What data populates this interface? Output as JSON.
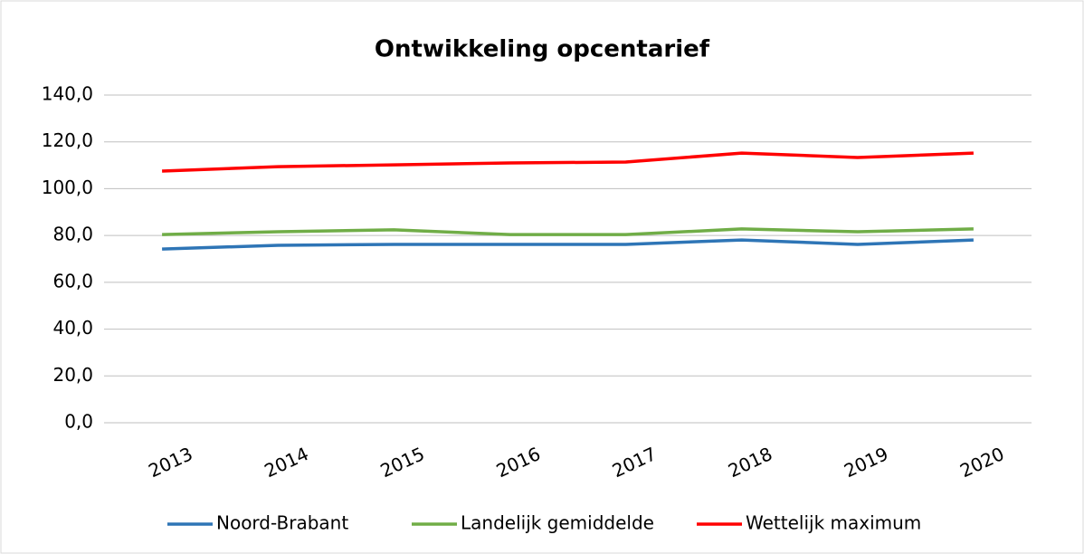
{
  "chart_data": {
    "type": "line",
    "title": "Ontwikkeling opcentarief",
    "categories": [
      "2013",
      "2014",
      "2015",
      "2016",
      "2017",
      "2018",
      "2019",
      "2020"
    ],
    "series": [
      {
        "name": "Noord-Brabant",
        "color": "#2e75b6",
        "values": [
          74.2,
          75.8,
          76.2,
          76.2,
          76.2,
          78.1,
          76.2,
          78.1
        ]
      },
      {
        "name": "Landelijk gemiddelde",
        "color": "#70ad47",
        "values": [
          80.4,
          81.6,
          82.4,
          80.4,
          80.4,
          82.8,
          81.6,
          82.8
        ]
      },
      {
        "name": "Wettelijk maximum",
        "color": "#ff0000",
        "values": [
          107.5,
          109.4,
          110.2,
          111.0,
          111.4,
          115.2,
          113.3,
          115.2
        ]
      }
    ],
    "ylim": [
      0,
      140
    ],
    "yticks": [
      {
        "value": 0,
        "label": "0,0"
      },
      {
        "value": 20,
        "label": "20,0"
      },
      {
        "value": 40,
        "label": "40,0"
      },
      {
        "value": 60,
        "label": "60,0"
      },
      {
        "value": 80,
        "label": "80,0"
      },
      {
        "value": 100,
        "label": "100,0"
      },
      {
        "value": 120,
        "label": "120,0"
      },
      {
        "value": 140,
        "label": "140,0"
      }
    ],
    "grid": true,
    "legend": "bottom"
  }
}
